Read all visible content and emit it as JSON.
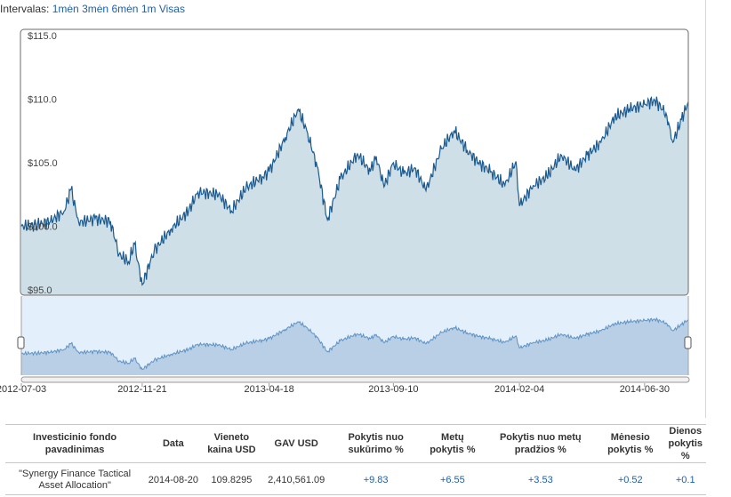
{
  "intervals": {
    "label": "Intervalas:",
    "options": [
      "1mėn",
      "3mėn",
      "6mėn",
      "1m",
      "Visas"
    ]
  },
  "chart_data": {
    "type": "area",
    "title": "",
    "xlabel": "",
    "ylabel": "",
    "ylim": [
      95,
      115
    ],
    "y_ticks": [
      "$115.0",
      "$110.0",
      "$105.0",
      "$100.0",
      "$95.0"
    ],
    "x_ticks": [
      "2012-07-03",
      "2012-11-21",
      "2013-04-18",
      "2013-09-10",
      "2014-02-04",
      "2014-06-30"
    ],
    "x_range": [
      "2012-07-03",
      "2014-08-20"
    ],
    "grid": false,
    "legend": "none",
    "line_color": "#1a5a90",
    "fill_color": "#cfdfe7",
    "navigator_fill": "#b8cfe6",
    "navigator_bg": "#e3effb",
    "series": [
      {
        "points": [
          [
            "2012-07-03",
            100.0
          ],
          [
            "2012-07-20",
            100.1
          ],
          [
            "2012-08-06",
            100.4
          ],
          [
            "2012-08-22",
            101.2
          ],
          [
            "2012-08-30",
            102.9
          ],
          [
            "2012-09-08",
            100.3
          ],
          [
            "2012-09-27",
            100.6
          ],
          [
            "2012-10-15",
            100.4
          ],
          [
            "2012-10-25",
            97.8
          ],
          [
            "2012-11-05",
            97.2
          ],
          [
            "2012-11-12",
            98.6
          ],
          [
            "2012-11-21",
            95.4
          ],
          [
            "2012-12-05",
            98.1
          ],
          [
            "2012-12-25",
            99.8
          ],
          [
            "2013-01-14",
            101.2
          ],
          [
            "2013-01-25",
            102.7
          ],
          [
            "2013-02-18",
            102.5
          ],
          [
            "2013-03-05",
            101.2
          ],
          [
            "2013-03-22",
            103.0
          ],
          [
            "2013-04-10",
            103.9
          ],
          [
            "2013-04-18",
            104.3
          ],
          [
            "2013-05-07",
            107.0
          ],
          [
            "2013-05-22",
            109.2
          ],
          [
            "2013-06-02",
            107.3
          ],
          [
            "2013-06-13",
            104.7
          ],
          [
            "2013-06-25",
            100.5
          ],
          [
            "2013-07-10",
            103.7
          ],
          [
            "2013-07-30",
            105.7
          ],
          [
            "2013-08-14",
            104.3
          ],
          [
            "2013-08-21",
            105.5
          ],
          [
            "2013-08-30",
            103.1
          ],
          [
            "2013-09-10",
            105.0
          ],
          [
            "2013-09-22",
            104.1
          ],
          [
            "2013-10-05",
            104.6
          ],
          [
            "2013-10-18",
            102.8
          ],
          [
            "2013-11-05",
            106.1
          ],
          [
            "2013-11-20",
            107.5
          ],
          [
            "2013-12-05",
            106.0
          ],
          [
            "2013-12-18",
            105.0
          ],
          [
            "2014-01-02",
            104.3
          ],
          [
            "2014-01-18",
            103.2
          ],
          [
            "2014-01-31",
            105.1
          ],
          [
            "2014-02-04",
            101.6
          ],
          [
            "2014-02-20",
            103.2
          ],
          [
            "2014-03-08",
            103.9
          ],
          [
            "2014-03-25",
            105.6
          ],
          [
            "2014-04-10",
            104.4
          ],
          [
            "2014-04-24",
            105.6
          ],
          [
            "2014-05-10",
            106.6
          ],
          [
            "2014-05-26",
            108.6
          ],
          [
            "2014-06-12",
            109.2
          ],
          [
            "2014-06-30",
            109.6
          ],
          [
            "2014-07-12",
            109.9
          ],
          [
            "2014-07-25",
            108.9
          ],
          [
            "2014-08-02",
            106.6
          ],
          [
            "2014-08-12",
            108.4
          ],
          [
            "2014-08-20",
            109.8
          ]
        ]
      }
    ]
  },
  "table": {
    "headers": [
      "Investicinio fondo pavadinimas",
      "Data",
      "Vieneto kaina USD",
      "GAV USD",
      "Pokytis nuo sukūrimo %",
      "Metų pokytis %",
      "Pokytis nuo metų pradžios %",
      "Mėnesio pokytis %",
      "Dienos pokytis %"
    ],
    "rows": [
      [
        "\"Synergy Finance Tactical Asset Allocation\"",
        "2014-08-20",
        "109.8295",
        "2,410,561.09",
        "+9.83",
        "+6.55",
        "+3.53",
        "+0.52",
        "+0.1"
      ]
    ]
  }
}
